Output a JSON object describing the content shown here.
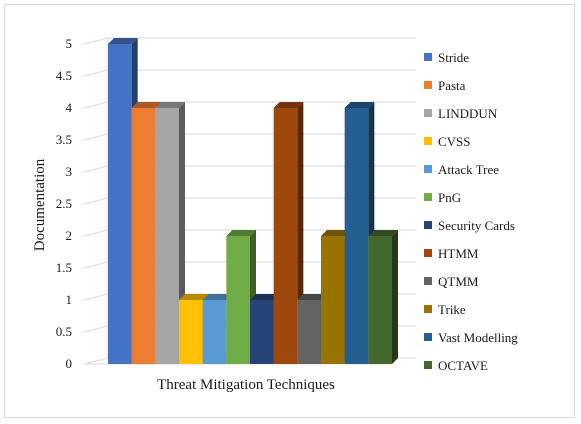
{
  "chart_data": {
    "type": "bar",
    "style": "3d-clustered-column",
    "title": "",
    "xlabel": "Threat Mitigation Techniques",
    "ylabel": "Documentation",
    "ylim": [
      0,
      5
    ],
    "yticks": [
      "0",
      "0.5",
      "1",
      "1.5",
      "2",
      "2.5",
      "3",
      "3.5",
      "4",
      "4.5",
      "5"
    ],
    "grid": true,
    "legend_position": "right",
    "series": [
      {
        "name": "Stride",
        "value": 5,
        "color": "#4472C4"
      },
      {
        "name": "Pasta",
        "value": 4,
        "color": "#ED7D31"
      },
      {
        "name": "LINDDUN",
        "value": 4,
        "color": "#A5A5A5"
      },
      {
        "name": "CVSS",
        "value": 1,
        "color": "#FFC000"
      },
      {
        "name": "Attack Tree",
        "value": 1,
        "color": "#5B9BD5"
      },
      {
        "name": "PnG",
        "value": 2,
        "color": "#70AD47"
      },
      {
        "name": "Security Cards",
        "value": 1,
        "color": "#264478"
      },
      {
        "name": "HTMM",
        "value": 4,
        "color": "#9E480E"
      },
      {
        "name": "QTMM",
        "value": 1,
        "color": "#636363"
      },
      {
        "name": "Trike",
        "value": 2,
        "color": "#997300"
      },
      {
        "name": "Vast Modelling",
        "value": 4,
        "color": "#255E91"
      },
      {
        "name": "OCTAVE",
        "value": 2,
        "color": "#43682B"
      }
    ]
  }
}
